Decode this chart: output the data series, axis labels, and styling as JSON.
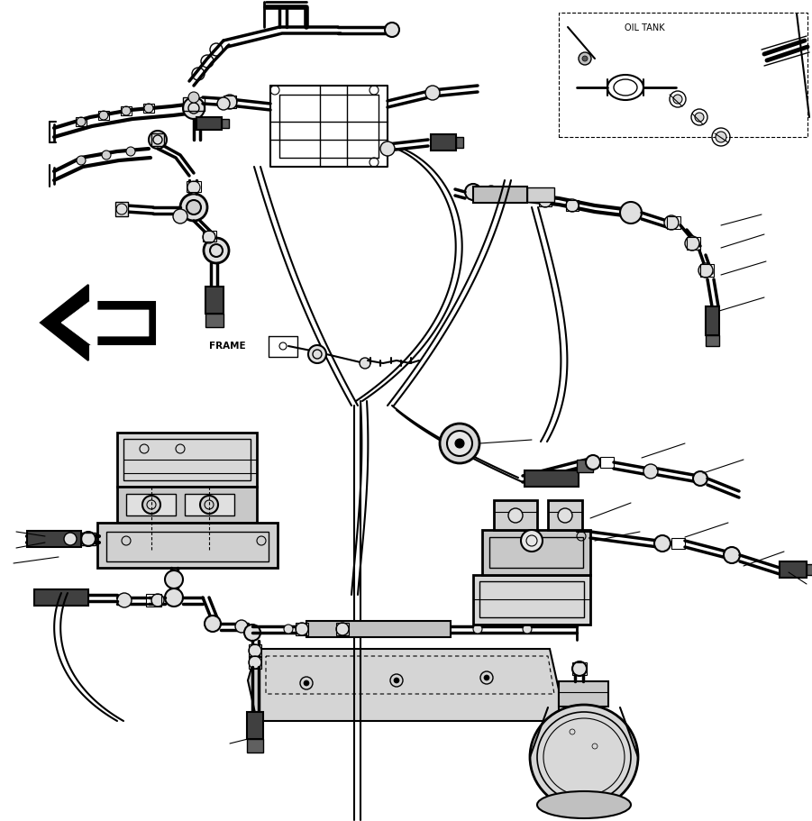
{
  "background_color": "#ffffff",
  "line_color": "#000000",
  "fig_width": 9.01,
  "fig_height": 9.11,
  "dpi": 100,
  "oil_tank_text": "OIL TANK",
  "frame_text": "FRAME"
}
